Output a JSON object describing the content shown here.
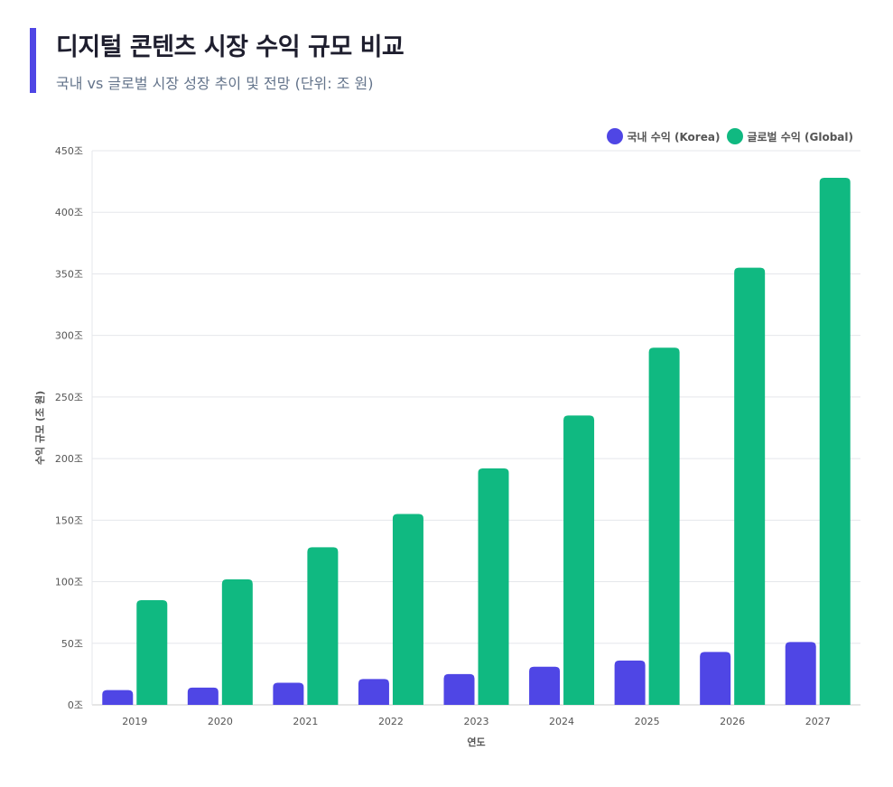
{
  "header": {
    "title": "디지털 콘텐츠 시장 수익 규모 비교",
    "subtitle": "국내 vs 글로벌 시장 성장 추이 및 전망 (단위: 조 원)"
  },
  "chart_data": {
    "type": "bar",
    "categories": [
      "2019",
      "2020",
      "2021",
      "2022",
      "2023",
      "2024",
      "2025",
      "2026",
      "2027"
    ],
    "series": [
      {
        "name": "국내 수익 (Korea)",
        "color": "#4F46E5",
        "values": [
          12,
          14,
          18,
          21,
          25,
          31,
          36,
          43,
          51
        ]
      },
      {
        "name": "글로벌 수익 (Global)",
        "color": "#10B981",
        "values": [
          85,
          102,
          128,
          155,
          192,
          235,
          290,
          355,
          428
        ]
      }
    ],
    "xlabel": "연도",
    "ylabel": "수익 규모 (조 원)",
    "ylim": [
      0,
      450
    ],
    "yticks": [
      "0조",
      "50조",
      "100조",
      "150조",
      "200조",
      "250조",
      "300조",
      "350조",
      "400조",
      "450조"
    ],
    "grid": true,
    "legend": "top-right"
  }
}
